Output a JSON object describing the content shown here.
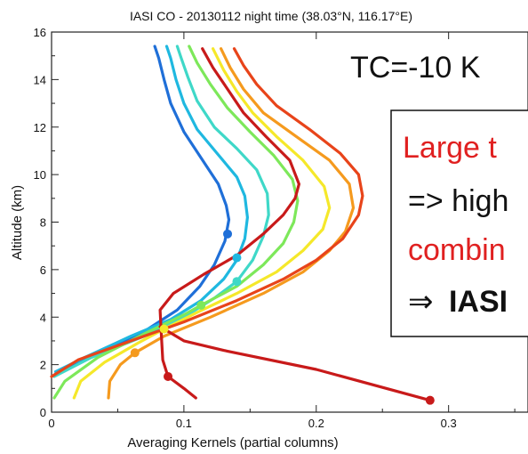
{
  "chart_data": {
    "type": "line",
    "title": "IASI CO - 20130112 night time (38.03°N, 116.17°E)",
    "xlabel": "Averaging Kernels (partial columns)",
    "ylabel": "Altitude (km)",
    "xlim": [
      0,
      0.36
    ],
    "ylim": [
      0,
      16
    ],
    "xticks": [
      0,
      0.1,
      0.2,
      0.3
    ],
    "xtick_labels": [
      "0",
      "0.1",
      "0.2",
      "0.3"
    ],
    "yticks": [
      0,
      2,
      4,
      6,
      8,
      10,
      12,
      14,
      16
    ],
    "ytick_labels": [
      "0",
      "2",
      "4",
      "6",
      "8",
      "10",
      "12",
      "14",
      "16"
    ],
    "grid": false,
    "series": [
      {
        "color": "#1f6fd8",
        "marker": {
          "x": 0.133,
          "y": 7.5
        },
        "points": [
          [
            0.003,
            1.6
          ],
          [
            0.02,
            2.1
          ],
          [
            0.04,
            2.6
          ],
          [
            0.07,
            3.4
          ],
          [
            0.095,
            4.3
          ],
          [
            0.112,
            5.3
          ],
          [
            0.123,
            6.2
          ],
          [
            0.131,
            7.2
          ],
          [
            0.134,
            8.1
          ],
          [
            0.132,
            8.7
          ],
          [
            0.126,
            9.6
          ],
          [
            0.113,
            10.7
          ],
          [
            0.1,
            11.8
          ],
          [
            0.09,
            13.0
          ],
          [
            0.085,
            14.0
          ],
          [
            0.081,
            14.9
          ],
          [
            0.078,
            15.4
          ]
        ]
      },
      {
        "color": "#1fb8e0",
        "marker": {
          "x": 0.14,
          "y": 6.5
        },
        "points": [
          [
            0.003,
            1.7
          ],
          [
            0.025,
            2.3
          ],
          [
            0.06,
            3.2
          ],
          [
            0.09,
            3.9
          ],
          [
            0.113,
            4.7
          ],
          [
            0.13,
            5.6
          ],
          [
            0.14,
            6.4
          ],
          [
            0.146,
            7.3
          ],
          [
            0.148,
            8.2
          ],
          [
            0.146,
            9.1
          ],
          [
            0.14,
            9.9
          ],
          [
            0.125,
            10.9
          ],
          [
            0.11,
            11.9
          ],
          [
            0.1,
            13.0
          ],
          [
            0.094,
            14.0
          ],
          [
            0.09,
            14.9
          ],
          [
            0.087,
            15.4
          ]
        ]
      },
      {
        "color": "#3fd8c8",
        "marker": {
          "x": 0.14,
          "y": 5.5
        },
        "points": [
          [
            0.002,
            1.5
          ],
          [
            0.03,
            2.3
          ],
          [
            0.07,
            3.2
          ],
          [
            0.1,
            4.0
          ],
          [
            0.123,
            4.8
          ],
          [
            0.14,
            5.5
          ],
          [
            0.152,
            6.4
          ],
          [
            0.16,
            7.4
          ],
          [
            0.164,
            8.3
          ],
          [
            0.163,
            9.2
          ],
          [
            0.155,
            10.2
          ],
          [
            0.14,
            11.1
          ],
          [
            0.123,
            12.0
          ],
          [
            0.11,
            13.1
          ],
          [
            0.103,
            14.1
          ],
          [
            0.098,
            14.9
          ],
          [
            0.095,
            15.4
          ]
        ]
      },
      {
        "color": "#7de85a",
        "marker": {
          "x": 0.113,
          "y": 4.5
        },
        "points": [
          [
            0.002,
            0.6
          ],
          [
            0.01,
            1.3
          ],
          [
            0.035,
            2.3
          ],
          [
            0.07,
            3.3
          ],
          [
            0.1,
            4.1
          ],
          [
            0.113,
            4.5
          ],
          [
            0.14,
            5.3
          ],
          [
            0.16,
            6.2
          ],
          [
            0.175,
            7.1
          ],
          [
            0.183,
            8.0
          ],
          [
            0.186,
            8.9
          ],
          [
            0.182,
            9.8
          ],
          [
            0.168,
            10.8
          ],
          [
            0.15,
            11.8
          ],
          [
            0.133,
            12.8
          ],
          [
            0.12,
            13.8
          ],
          [
            0.11,
            14.7
          ],
          [
            0.104,
            15.4
          ]
        ]
      },
      {
        "color": "#f5e82a",
        "marker": {
          "x": 0.085,
          "y": 3.5
        },
        "points": [
          [
            0.017,
            0.6
          ],
          [
            0.022,
            1.3
          ],
          [
            0.04,
            2.1
          ],
          [
            0.065,
            2.9
          ],
          [
            0.085,
            3.5
          ],
          [
            0.11,
            4.2
          ],
          [
            0.14,
            5.0
          ],
          [
            0.17,
            5.9
          ],
          [
            0.19,
            6.8
          ],
          [
            0.205,
            7.7
          ],
          [
            0.21,
            8.6
          ],
          [
            0.206,
            9.5
          ],
          [
            0.19,
            10.6
          ],
          [
            0.17,
            11.6
          ],
          [
            0.152,
            12.6
          ],
          [
            0.14,
            13.5
          ],
          [
            0.13,
            14.4
          ],
          [
            0.122,
            15.3
          ]
        ]
      },
      {
        "color": "#f59a1e",
        "marker": {
          "x": 0.063,
          "y": 2.5
        },
        "points": [
          [
            0.043,
            0.6
          ],
          [
            0.044,
            1.3
          ],
          [
            0.052,
            2.0
          ],
          [
            0.063,
            2.5
          ],
          [
            0.085,
            3.2
          ],
          [
            0.12,
            4.0
          ],
          [
            0.16,
            5.0
          ],
          [
            0.19,
            5.9
          ],
          [
            0.21,
            6.8
          ],
          [
            0.222,
            7.6
          ],
          [
            0.228,
            8.6
          ],
          [
            0.225,
            9.6
          ],
          [
            0.21,
            10.6
          ],
          [
            0.185,
            11.6
          ],
          [
            0.16,
            12.6
          ],
          [
            0.145,
            13.6
          ],
          [
            0.135,
            14.5
          ],
          [
            0.128,
            15.3
          ]
        ]
      },
      {
        "color": "#e8441a",
        "marker": null,
        "points": [
          [
            0.0,
            1.5
          ],
          [
            0.02,
            2.2
          ],
          [
            0.06,
            3.0
          ],
          [
            0.1,
            3.8
          ],
          [
            0.14,
            4.7
          ],
          [
            0.175,
            5.6
          ],
          [
            0.2,
            6.4
          ],
          [
            0.22,
            7.3
          ],
          [
            0.232,
            8.3
          ],
          [
            0.235,
            9.1
          ],
          [
            0.232,
            10.0
          ],
          [
            0.218,
            10.9
          ],
          [
            0.195,
            11.9
          ],
          [
            0.17,
            12.9
          ],
          [
            0.155,
            13.8
          ],
          [
            0.145,
            14.6
          ],
          [
            0.138,
            15.3
          ]
        ]
      },
      {
        "color": "#c81a1a",
        "marker": {
          "x": 0.088,
          "y": 1.5
        },
        "marker2": {
          "x": 0.286,
          "y": 0.5
        },
        "points": [
          [
            0.109,
            0.6
          ],
          [
            0.1,
            1.0
          ],
          [
            0.088,
            1.5
          ],
          [
            0.084,
            2.2
          ],
          [
            0.083,
            3.2
          ],
          [
            0.082,
            4.3
          ],
          [
            0.092,
            5.0
          ],
          [
            0.115,
            5.8
          ],
          [
            0.14,
            6.6
          ],
          [
            0.16,
            7.5
          ],
          [
            0.175,
            8.3
          ],
          [
            0.184,
            9.0
          ],
          [
            0.187,
            9.6
          ],
          [
            0.18,
            10.6
          ],
          [
            0.162,
            11.6
          ],
          [
            0.145,
            12.6
          ],
          [
            0.133,
            13.6
          ],
          [
            0.122,
            14.5
          ],
          [
            0.114,
            15.3
          ]
        ],
        "branch": [
          [
            0.082,
            3.6
          ],
          [
            0.1,
            3.0
          ],
          [
            0.13,
            2.6
          ],
          [
            0.2,
            1.8
          ],
          [
            0.286,
            0.5
          ]
        ]
      }
    ]
  },
  "annotations": {
    "tc_text": "TC=-10 K",
    "box_line1": "Large t",
    "box_line2": "=> high",
    "box_line3": "combin",
    "box_line4_arrow": "⇒",
    "box_line4_bold": "IASI",
    "line1_color": "#e02020",
    "line3_color": "#e02020"
  }
}
